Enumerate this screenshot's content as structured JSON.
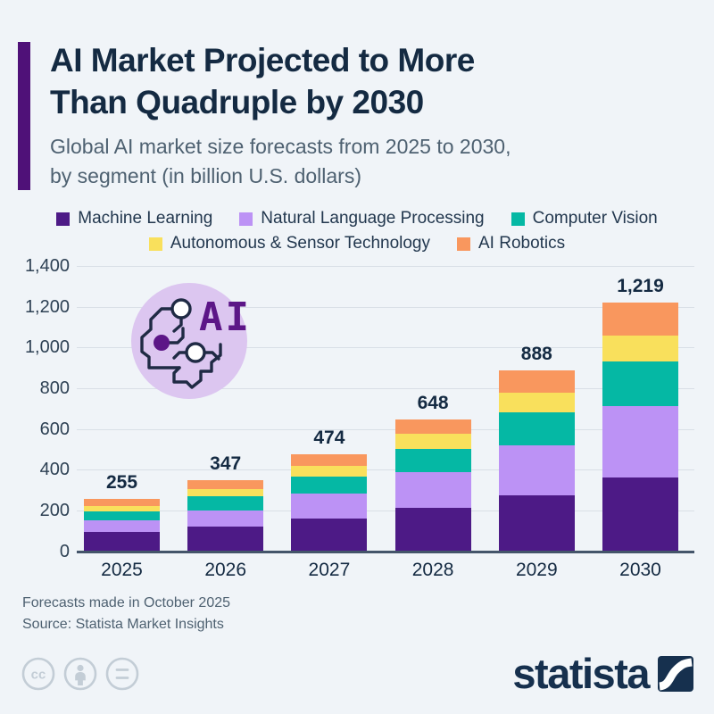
{
  "header": {
    "title_line1": "AI Market Projected to More",
    "title_line2": "Than Quadruple by 2030",
    "subtitle_line1": "Global AI market size forecasts from 2025 to 2030,",
    "subtitle_line2": "by segment (in billion U.S. dollars)",
    "accent_color": "#4F1178"
  },
  "legend": {
    "rows": [
      [
        {
          "label": "Machine Learning",
          "color": "#4D1A86"
        },
        {
          "label": "Natural Language Processing",
          "color": "#BC92F5"
        },
        {
          "label": "Computer Vision",
          "color": "#05B8A4"
        }
      ],
      [
        {
          "label": "Autonomous & Sensor Technology",
          "color": "#F9E05C"
        },
        {
          "label": "AI Robotics",
          "color": "#F9975E"
        }
      ]
    ]
  },
  "chart_data": {
    "type": "bar",
    "stacked": true,
    "categories": [
      "2025",
      "2026",
      "2027",
      "2028",
      "2029",
      "2030"
    ],
    "series": [
      {
        "name": "Machine Learning",
        "color": "#4D1A86",
        "values": [
          94,
          120,
          161,
          213,
          274,
          360
        ]
      },
      {
        "name": "Natural Language Processing",
        "color": "#BC92F5",
        "values": [
          59,
          80,
          123,
          176,
          247,
          352
        ]
      },
      {
        "name": "Computer Vision",
        "color": "#05B8A4",
        "values": [
          40,
          69,
          82,
          113,
          159,
          221
        ]
      },
      {
        "name": "Autonomous & Sensor Technology",
        "color": "#F9E05C",
        "values": [
          29,
          35,
          53,
          74,
          97,
          124
        ]
      },
      {
        "name": "AI Robotics",
        "color": "#F9975E",
        "values": [
          33,
          43,
          55,
          72,
          111,
          162
        ]
      }
    ],
    "totals": [
      255,
      347,
      474,
      648,
      888,
      1219
    ],
    "total_labels": [
      "255",
      "347",
      "474",
      "648",
      "888",
      "1,219"
    ],
    "yticks": [
      "0",
      "200",
      "400",
      "600",
      "800",
      "1,000",
      "1,200",
      "1,400"
    ],
    "ylim": [
      0,
      1400
    ],
    "xlabel": "",
    "ylabel": "",
    "grid": true,
    "legend_position": "top"
  },
  "ai_badge": {
    "text": "AI"
  },
  "footer": {
    "note": "Forecasts made in October 2025",
    "source": "Source: Statista Market Insights",
    "license_icons": [
      "cc-icon",
      "attribution-icon",
      "equal-icon"
    ],
    "logo_text": "statista"
  }
}
